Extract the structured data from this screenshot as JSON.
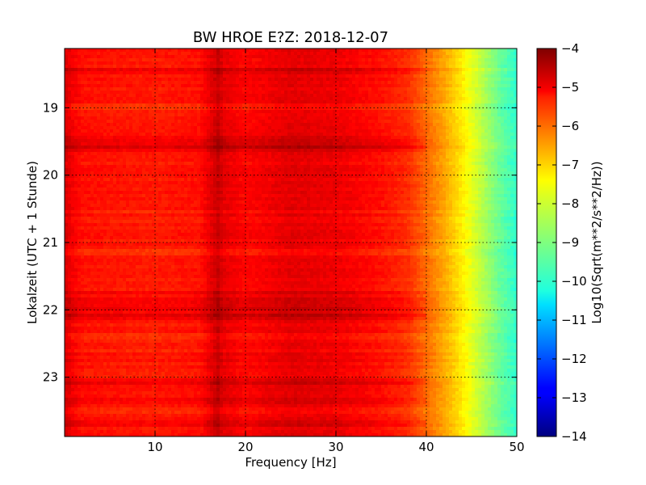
{
  "chart_data": {
    "type": "heatmap",
    "title": "BW HROE E?Z: 2018-12-07",
    "xlabel": "Frequency [Hz]",
    "ylabel": "Lokalzeit (UTC + 1 Stunde)",
    "xlim": [
      0,
      50
    ],
    "ylim": [
      23.88,
      18.12
    ],
    "x_ticks": [
      10,
      20,
      30,
      40,
      50
    ],
    "x_tick_labels": [
      "10",
      "20",
      "30",
      "40",
      "50"
    ],
    "y_ticks": [
      19,
      20,
      21,
      22,
      23
    ],
    "y_tick_labels": [
      "19",
      "20",
      "21",
      "22",
      "23"
    ],
    "grid": true,
    "colormap": "jet",
    "colorbar": {
      "label": "Log10(Sqrt(m**2/s**2/Hz))",
      "range": [
        -14,
        -4
      ],
      "ticks": [
        -4,
        -5,
        -6,
        -7,
        -8,
        -9,
        -10,
        -11,
        -12,
        -13,
        -14
      ],
      "tick_labels": [
        "−4",
        "−5",
        "−6",
        "−7",
        "−8",
        "−9",
        "−10",
        "−11",
        "−12",
        "−13",
        "−14"
      ]
    },
    "frequency_profile": {
      "x": [
        0,
        1,
        2,
        5,
        10,
        15,
        16.5,
        17,
        17.5,
        20,
        25,
        30,
        35,
        38,
        40,
        42,
        44,
        46,
        48,
        50
      ],
      "values": [
        -4.9,
        -5.2,
        -5.4,
        -5.45,
        -5.5,
        -5.4,
        -4.9,
        -4.7,
        -5.0,
        -5.3,
        -5.0,
        -5.1,
        -5.4,
        -5.7,
        -6.3,
        -6.9,
        -7.6,
        -8.4,
        -9.2,
        -9.8
      ]
    },
    "dark_time_bands": [
      18.45,
      19.45,
      19.55,
      19.62,
      21.75,
      21.85,
      21.95,
      22.05,
      22.1,
      23.05,
      23.35,
      23.7
    ],
    "light_time_bands": [
      19.0,
      20.55,
      21.15,
      22.4,
      22.6,
      23.5
    ]
  }
}
